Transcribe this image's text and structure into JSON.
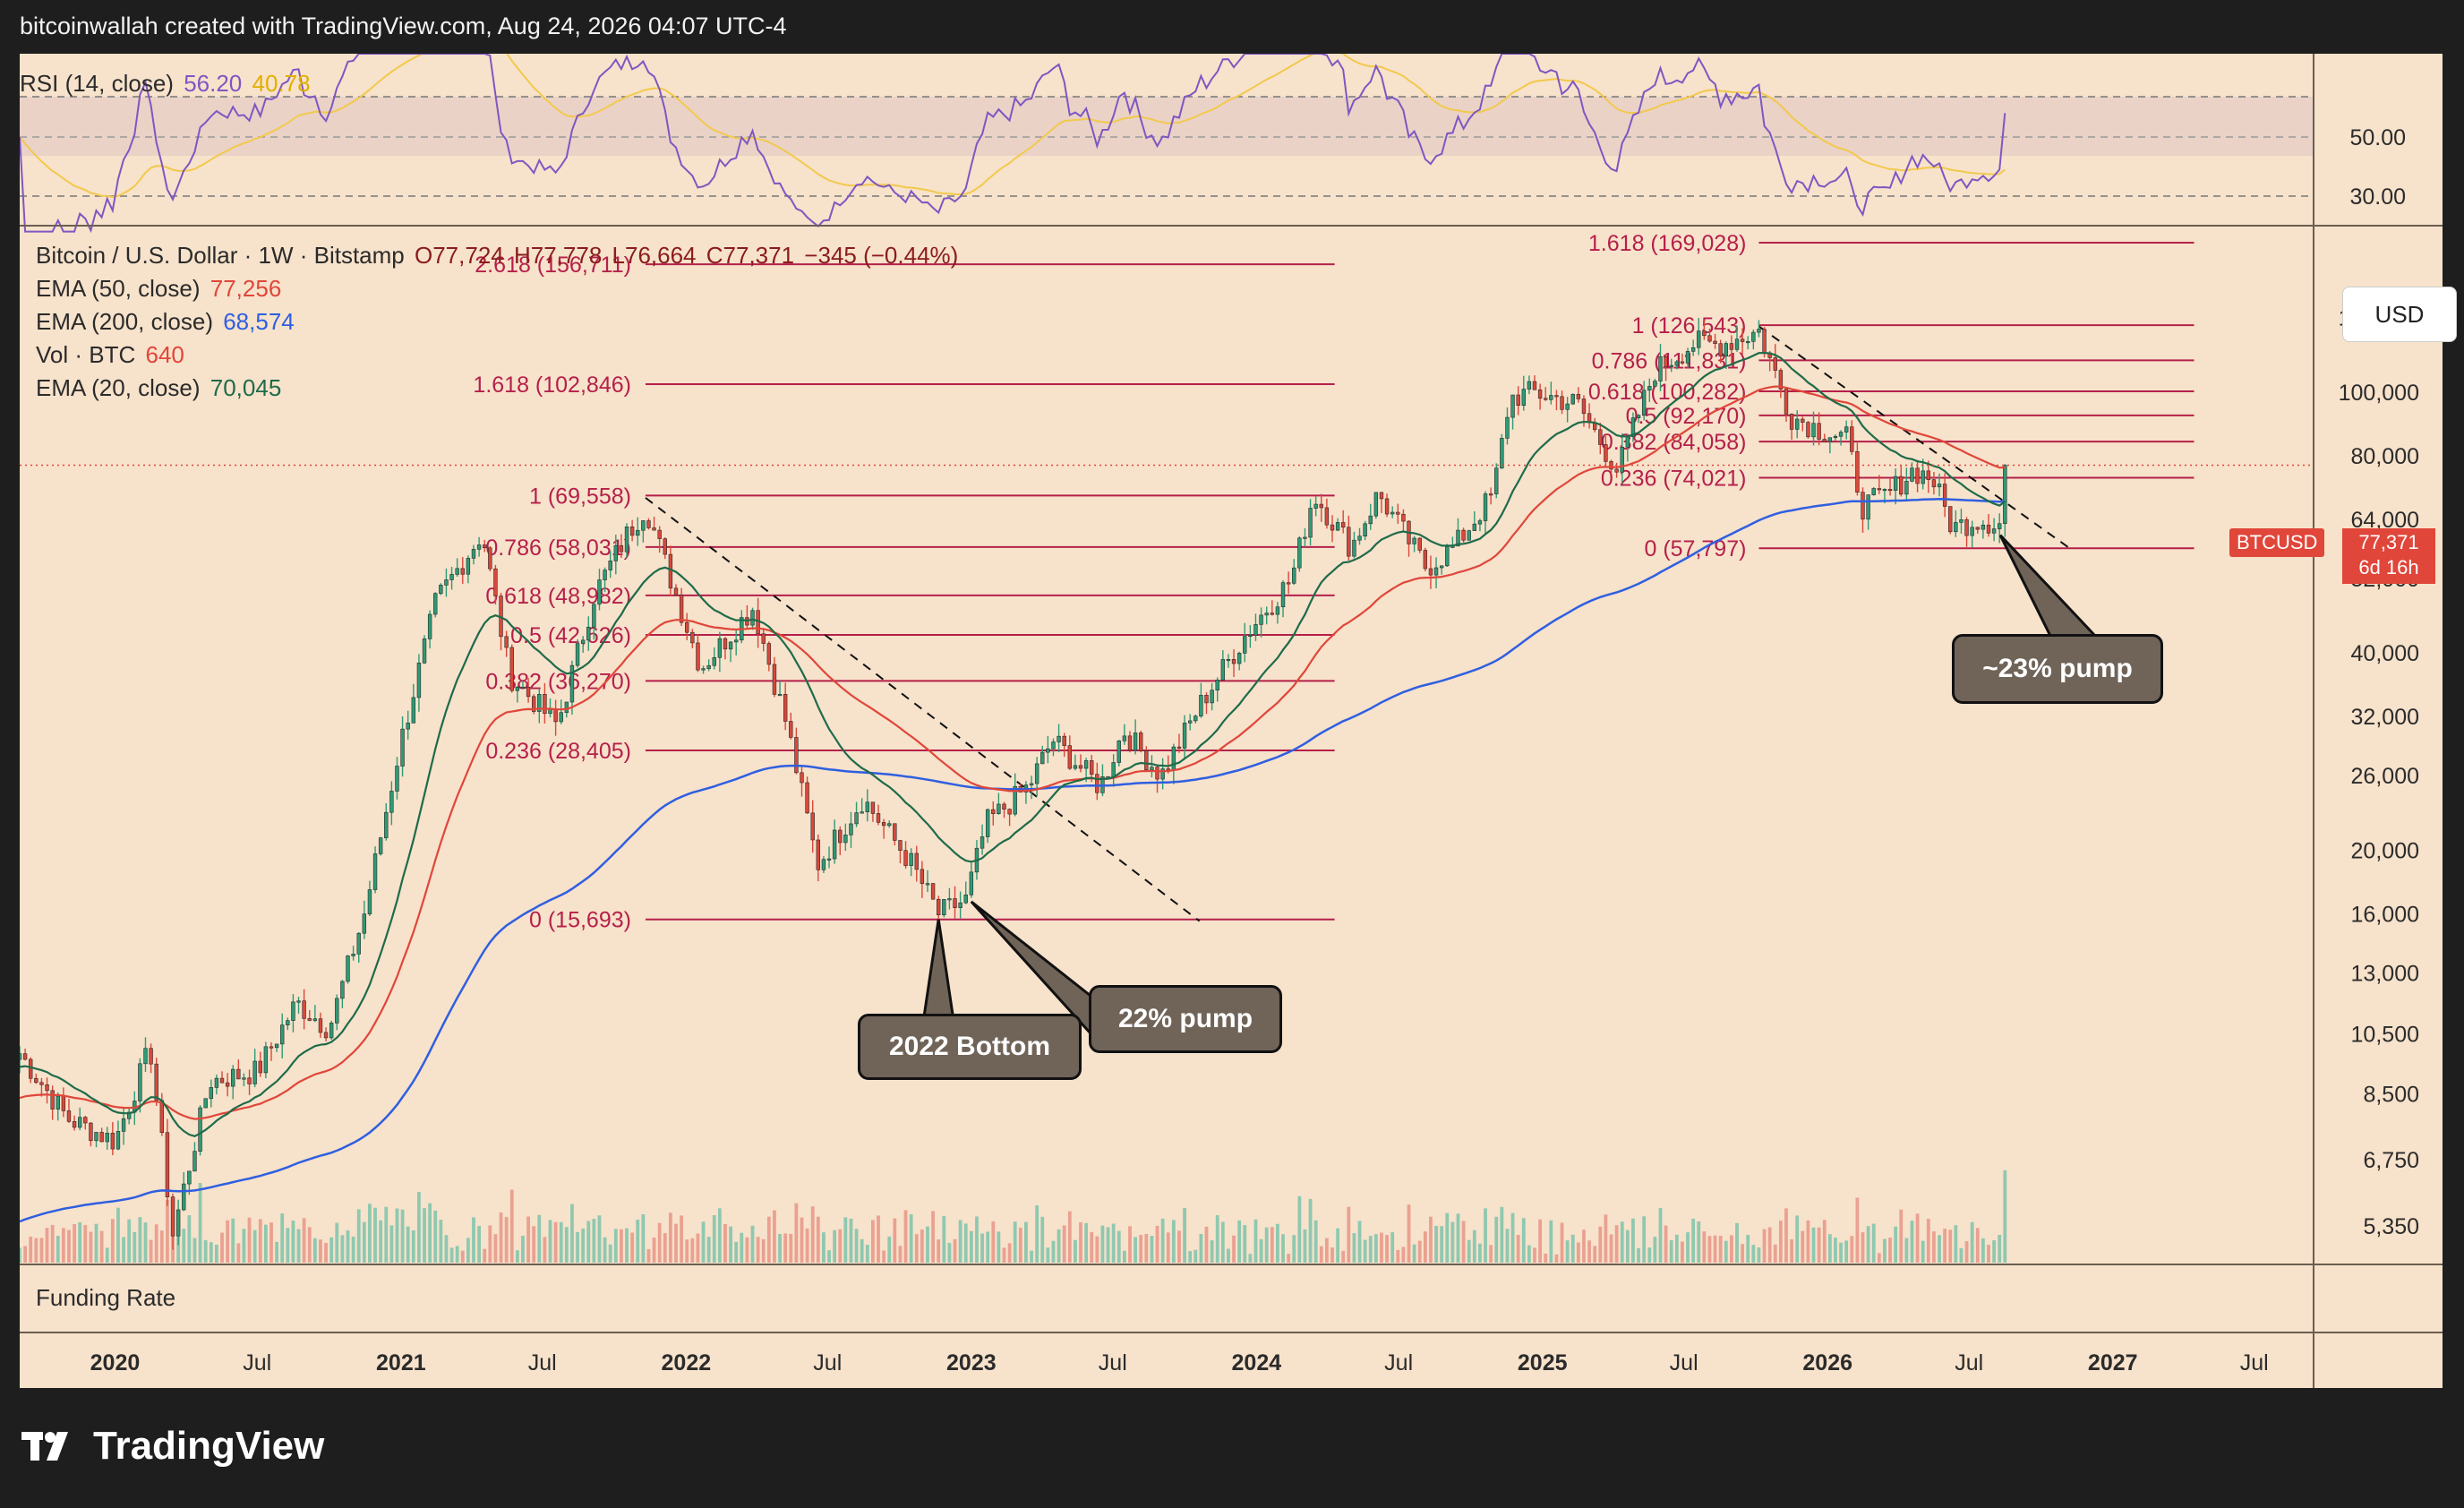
{
  "attribution": "bitcoinwallah created with TradingView.com, Aug 24, 2026 04:07 UTC-4",
  "brand": "TradingView",
  "currency_button": "USD",
  "legend": {
    "symbol_line": "Bitcoin / U.S. Dollar · 1W · Bitstamp",
    "o": "O77,724",
    "h": "H77,778",
    "l": "L76,664",
    "c": "C77,371",
    "chg": "−345 (−0.44%)",
    "ema50_label": "EMA (50, close)",
    "ema50_value": "77,256",
    "ema200_label": "EMA (200, close)",
    "ema200_value": "68,574",
    "vol_label": "Vol · BTC",
    "vol_value": "640",
    "ema20_label": "EMA (20, close)",
    "ema20_value": "70,045"
  },
  "rsi": {
    "label": "RSI (14, close)",
    "value": "56.20",
    "ma_value": "40.78",
    "ticks": [
      "50.00",
      "30.00"
    ]
  },
  "funding_label": "Funding Rate",
  "price_tag": {
    "symbol": "BTCUSD",
    "value": "77,371",
    "countdown": "6d 16h"
  },
  "callouts": {
    "bottom": "2022 Bottom",
    "pump22": "22% pump",
    "pump23": "~23% pump"
  },
  "colors": {
    "background": "#f7e2cb",
    "ema50": "#e0463a",
    "ema200": "#2f5fe0",
    "ema20": "#1e6b4a",
    "fib": "#b5204a",
    "rsi_line": "#7e57c2",
    "rsi_ma": "#f2c94c",
    "up": "#2e9b75",
    "down": "#d9483b"
  },
  "chart_data": {
    "type": "candlestick",
    "timeframe": "1W",
    "y_scale": "log",
    "ylim": [
      4700,
      175000
    ],
    "y_ticks": [
      "130,000",
      "100,000",
      "80,000",
      "64,000",
      "52,000",
      "40,000",
      "32,000",
      "26,000",
      "20,000",
      "16,000",
      "13,000",
      "10,500",
      "8,500",
      "6,750",
      "5,350"
    ],
    "x_ticks": [
      "2020",
      "Jul",
      "2021",
      "Jul",
      "2022",
      "Jul",
      "2023",
      "Jul",
      "2024",
      "Jul",
      "2025",
      "Jul",
      "2026",
      "Jul",
      "2027",
      "Jul"
    ],
    "close_path": [
      [
        "2019-09-01",
        9800
      ],
      [
        "2019-11-01",
        7800
      ],
      [
        "2020-01-01",
        7200
      ],
      [
        "2020-02-15",
        10000
      ],
      [
        "2020-03-15",
        5200
      ],
      [
        "2020-05-01",
        8900
      ],
      [
        "2020-07-01",
        9200
      ],
      [
        "2020-08-20",
        11700
      ],
      [
        "2020-10-01",
        10700
      ],
      [
        "2020-11-15",
        16000
      ],
      [
        "2020-12-31",
        29000
      ],
      [
        "2021-02-15",
        48000
      ],
      [
        "2021-04-15",
        61000
      ],
      [
        "2021-05-20",
        37000
      ],
      [
        "2021-07-20",
        31000
      ],
      [
        "2021-09-05",
        49000
      ],
      [
        "2021-10-15",
        60000
      ],
      [
        "2021-11-10",
        67000
      ],
      [
        "2022-01-20",
        38000
      ],
      [
        "2022-03-28",
        47000
      ],
      [
        "2022-05-10",
        31000
      ],
      [
        "2022-06-18",
        19000
      ],
      [
        "2022-08-15",
        24000
      ],
      [
        "2022-10-15",
        19200
      ],
      [
        "2022-11-20",
        16000
      ],
      [
        "2022-12-25",
        16800
      ],
      [
        "2023-01-20",
        22000
      ],
      [
        "2023-03-15",
        25000
      ],
      [
        "2023-04-15",
        29500
      ],
      [
        "2023-06-15",
        25000
      ],
      [
        "2023-07-15",
        30500
      ],
      [
        "2023-09-01",
        26000
      ],
      [
        "2023-10-25",
        34000
      ],
      [
        "2023-12-20",
        43000
      ],
      [
        "2024-02-15",
        52000
      ],
      [
        "2024-03-14",
        70000
      ],
      [
        "2024-05-01",
        58000
      ],
      [
        "2024-06-05",
        70000
      ],
      [
        "2024-08-05",
        54000
      ],
      [
        "2024-09-10",
        58000
      ],
      [
        "2024-10-30",
        70000
      ],
      [
        "2024-11-20",
        98000
      ],
      [
        "2024-12-20",
        100000
      ],
      [
        "2025-02-15",
        96000
      ],
      [
        "2025-04-07",
        76000
      ],
      [
        "2025-05-25",
        108000
      ],
      [
        "2025-07-15",
        119000
      ],
      [
        "2025-08-15",
        118000
      ],
      [
        "2025-10-05",
        124000
      ],
      [
        "2025-11-15",
        92000
      ],
      [
        "2025-12-20",
        88000
      ],
      [
        "2026-01-25",
        85000
      ],
      [
        "2026-02-15",
        67000
      ],
      [
        "2026-03-20",
        70000
      ],
      [
        "2026-04-20",
        76000
      ],
      [
        "2026-05-15",
        74000
      ],
      [
        "2026-06-10",
        62000
      ],
      [
        "2026-07-10",
        64000
      ],
      [
        "2026-08-10",
        63000
      ],
      [
        "2026-08-20",
        77371
      ]
    ],
    "fibonacci_2021_2022": {
      "levels": [
        {
          "ratio": "0",
          "label": "0 (15,693)",
          "price": 15693
        },
        {
          "ratio": "0.236",
          "label": "0.236 (28,405)",
          "price": 28405
        },
        {
          "ratio": "0.382",
          "label": "0.382 (36,270)",
          "price": 36270
        },
        {
          "ratio": "0.5",
          "label": "0.5 (42,626)",
          "price": 42626
        },
        {
          "ratio": "0.618",
          "label": "0.618 (48,982)",
          "price": 48982
        },
        {
          "ratio": "0.786",
          "label": "0.786 (58,031)",
          "price": 58031
        },
        {
          "ratio": "1",
          "label": "1 (69,558)",
          "price": 69558
        },
        {
          "ratio": "1.618",
          "label": "1.618 (102,846)",
          "price": 102846
        },
        {
          "ratio": "2.618",
          "label": "2.618 (156,711)",
          "price": 156711
        }
      ]
    },
    "fibonacci_2025_2026": {
      "levels": [
        {
          "ratio": "0",
          "label": "0 (57,797)",
          "price": 57797
        },
        {
          "ratio": "0.236",
          "label": "0.236 (74,021)",
          "price": 74021
        },
        {
          "ratio": "0.382",
          "label": "0.382 (84,058)",
          "price": 84058
        },
        {
          "ratio": "0.5",
          "label": "0.5 (92,170)",
          "price": 92170
        },
        {
          "ratio": "0.618",
          "label": "0.618 (100,282)",
          "price": 100282
        },
        {
          "ratio": "0.786",
          "label": "0.786 (111,831)",
          "price": 111831
        },
        {
          "ratio": "1",
          "label": "1 (126,543)",
          "price": 126543
        },
        {
          "ratio": "1.618",
          "label": "1.618 (169,028)",
          "price": 169028
        }
      ]
    },
    "trendlines": [
      {
        "from": [
          "2021-11-10",
          69000
        ],
        "to": [
          "2023-10-20",
          15600
        ]
      },
      {
        "from": [
          "2025-10-05",
          126000
        ],
        "to": [
          "2026-11-05",
          58000
        ]
      }
    ]
  }
}
